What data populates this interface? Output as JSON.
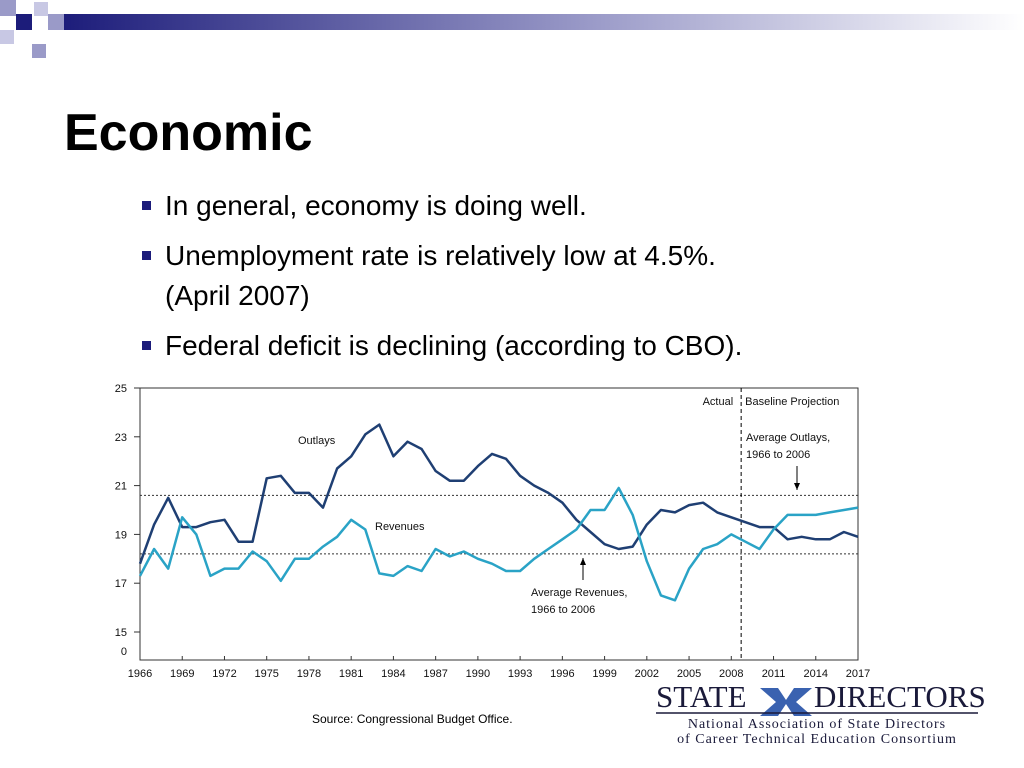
{
  "slide": {
    "title": "Economic",
    "bullets": [
      [
        "In general, economy is doing well."
      ],
      [
        "Unemployment rate is relatively low at 4.5%.",
        "(April 2007)"
      ],
      [
        "Federal deficit is declining (according to CBO)."
      ]
    ]
  },
  "chart_data": {
    "type": "line",
    "x": [
      1966,
      1967,
      1968,
      1969,
      1970,
      1971,
      1972,
      1973,
      1974,
      1975,
      1976,
      1977,
      1978,
      1979,
      1980,
      1981,
      1982,
      1983,
      1984,
      1985,
      1986,
      1987,
      1988,
      1989,
      1990,
      1991,
      1992,
      1993,
      1994,
      1995,
      1996,
      1997,
      1998,
      1999,
      2000,
      2001,
      2002,
      2003,
      2004,
      2005,
      2006,
      2007,
      2008,
      2009,
      2010,
      2011,
      2012,
      2013,
      2014,
      2015,
      2016,
      2017
    ],
    "xlim": [
      1966,
      2017
    ],
    "xticks": [
      1966,
      1969,
      1972,
      1975,
      1978,
      1981,
      1984,
      1987,
      1990,
      1993,
      1996,
      1999,
      2002,
      2005,
      2008,
      2011,
      2014,
      2017
    ],
    "ylim": [
      15,
      25
    ],
    "yticks": [
      15,
      17,
      19,
      21,
      23,
      25
    ],
    "y_break_tick": 0,
    "series": [
      {
        "name": "Outlays",
        "color": "#1f3f73",
        "values": [
          17.8,
          19.4,
          20.5,
          19.3,
          19.3,
          19.5,
          19.6,
          18.7,
          18.7,
          21.3,
          21.4,
          20.7,
          20.7,
          20.1,
          21.7,
          22.2,
          23.1,
          23.5,
          22.2,
          22.8,
          22.5,
          21.6,
          21.2,
          21.2,
          21.8,
          22.3,
          22.1,
          21.4,
          21.0,
          20.7,
          20.3,
          19.6,
          19.1,
          18.6,
          18.4,
          18.5,
          19.4,
          20.0,
          19.9,
          20.2,
          20.3,
          19.9,
          19.7,
          19.5,
          19.3,
          19.3,
          18.8,
          18.9,
          18.8,
          18.8,
          19.1,
          18.9
        ]
      },
      {
        "name": "Revenues",
        "color": "#2aa3c6",
        "values": [
          17.3,
          18.4,
          17.6,
          19.7,
          19.0,
          17.3,
          17.6,
          17.6,
          18.3,
          17.9,
          17.1,
          18.0,
          18.0,
          18.5,
          18.9,
          19.6,
          19.2,
          17.4,
          17.3,
          17.7,
          17.5,
          18.4,
          18.1,
          18.3,
          18.0,
          17.8,
          17.5,
          17.5,
          18.0,
          18.4,
          18.8,
          19.2,
          20.0,
          20.0,
          20.9,
          19.8,
          17.9,
          16.5,
          16.3,
          17.6,
          18.4,
          18.6,
          19.0,
          18.7,
          18.4,
          19.2,
          19.8,
          19.8,
          19.8,
          19.9,
          20.0,
          20.1
        ]
      }
    ],
    "reference_lines": [
      {
        "lines": [
          "Average Outlays,",
          "1966 to 2006"
        ],
        "value": 20.6
      },
      {
        "lines": [
          "Average Revenues,",
          "1966 to 2006"
        ],
        "value": 18.2
      }
    ],
    "divider_x": 2008.7,
    "divider_labels": [
      "Actual",
      "Baseline Projection"
    ]
  },
  "source": "Source: Congressional Budget Office.",
  "logo": {
    "left": "STATE",
    "right": "DIRECTORS",
    "lines": [
      "National Association of State Directors",
      "of Career Technical Education Consortium"
    ]
  }
}
